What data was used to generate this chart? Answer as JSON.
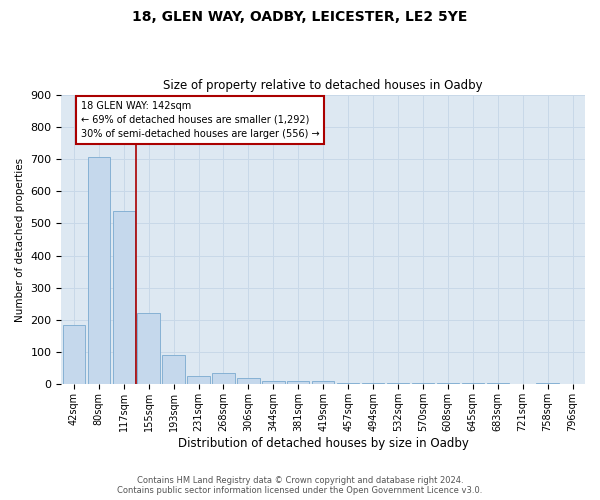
{
  "title1": "18, GLEN WAY, OADBY, LEICESTER, LE2 5YE",
  "title2": "Size of property relative to detached houses in Oadby",
  "xlabel": "Distribution of detached houses by size in Oadby",
  "ylabel": "Number of detached properties",
  "categories": [
    "42sqm",
    "80sqm",
    "117sqm",
    "155sqm",
    "193sqm",
    "231sqm",
    "268sqm",
    "306sqm",
    "344sqm",
    "381sqm",
    "419sqm",
    "457sqm",
    "494sqm",
    "532sqm",
    "570sqm",
    "608sqm",
    "645sqm",
    "683sqm",
    "721sqm",
    "758sqm",
    "796sqm"
  ],
  "values": [
    185,
    707,
    538,
    221,
    90,
    25,
    35,
    20,
    12,
    10,
    10,
    5,
    5,
    5,
    5,
    5,
    5,
    5,
    2,
    5,
    2
  ],
  "bar_color": "#c5d8ec",
  "bar_edge_color": "#7baad0",
  "annotation_text_line1": "18 GLEN WAY: 142sqm",
  "annotation_text_line2": "← 69% of detached houses are smaller (1,292)",
  "annotation_text_line3": "30% of semi-detached houses are larger (556) →",
  "annotation_box_facecolor": "#ffffff",
  "annotation_box_edgecolor": "#aa0000",
  "vline_color": "#aa0000",
  "vline_x": 2.5,
  "ylim": [
    0,
    900
  ],
  "yticks": [
    0,
    100,
    200,
    300,
    400,
    500,
    600,
    700,
    800,
    900
  ],
  "grid_color": "#c8d8e8",
  "bg_color": "#dde8f2",
  "fig_bg_color": "#ffffff",
  "footer1": "Contains HM Land Registry data © Crown copyright and database right 2024.",
  "footer2": "Contains public sector information licensed under the Open Government Licence v3.0."
}
